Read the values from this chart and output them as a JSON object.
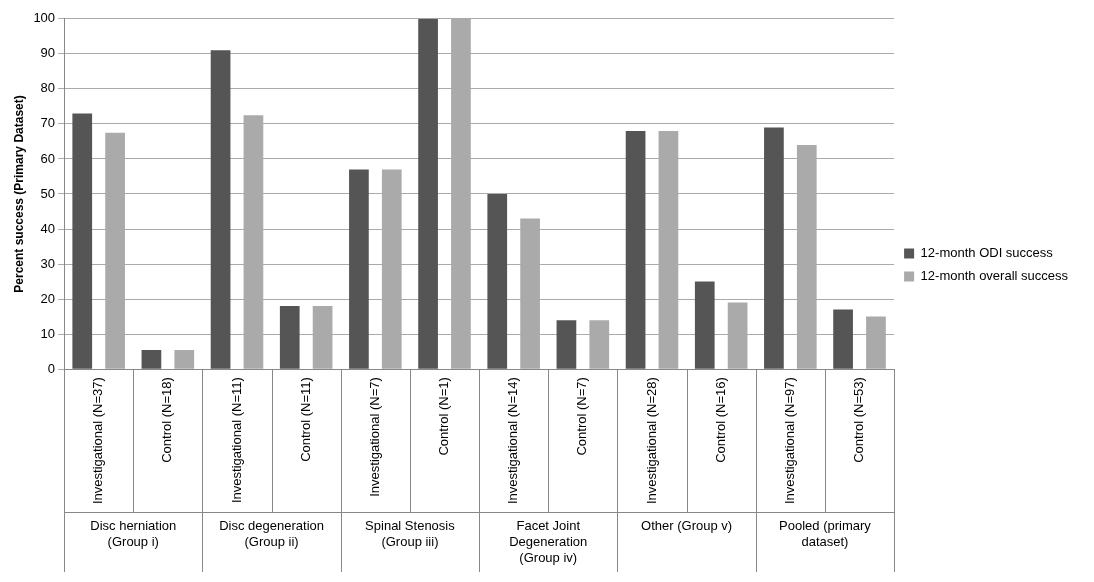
{
  "chart_data": {
    "type": "bar",
    "ylabel": "Percent success (Primary Dataset)",
    "categories": [
      "Investigational (N=37)",
      "Control (N=18)",
      "Investigational (N=11)",
      "Control (N=11)",
      "Investigational (N=7)",
      "Control (N=1)",
      "Investigational (N=14)",
      "Control (N=7)",
      "Investigational (N=28)",
      "Control (N=16)",
      "Investigational (N=97)",
      "Control (N=53)"
    ],
    "series": [
      {
        "name": "12-month ODI success",
        "color": "#555555",
        "values": [
          73,
          5.5,
          91,
          18,
          57,
          100,
          50,
          14,
          68,
          25,
          69,
          17
        ]
      },
      {
        "name": "12-month overall success",
        "color": "#aaaaaa",
        "values": [
          67.5,
          5.5,
          72.5,
          18,
          57,
          100,
          43,
          14,
          68,
          19,
          64,
          15
        ]
      }
    ],
    "annotations": [
      "Disc herniation (Group i)",
      "Disc degeneration (Group ii)",
      "Spinal Stenosis (Group iii)",
      "Facet Joint Degeneration (Group iv)",
      "Other (Group v)",
      "Pooled (primary dataset)"
    ],
    "ylim": [
      0,
      100
    ],
    "yticks": [
      0,
      10,
      20,
      30,
      40,
      50,
      60,
      70,
      80,
      90,
      100
    ],
    "grid": "y",
    "legend": "right"
  }
}
